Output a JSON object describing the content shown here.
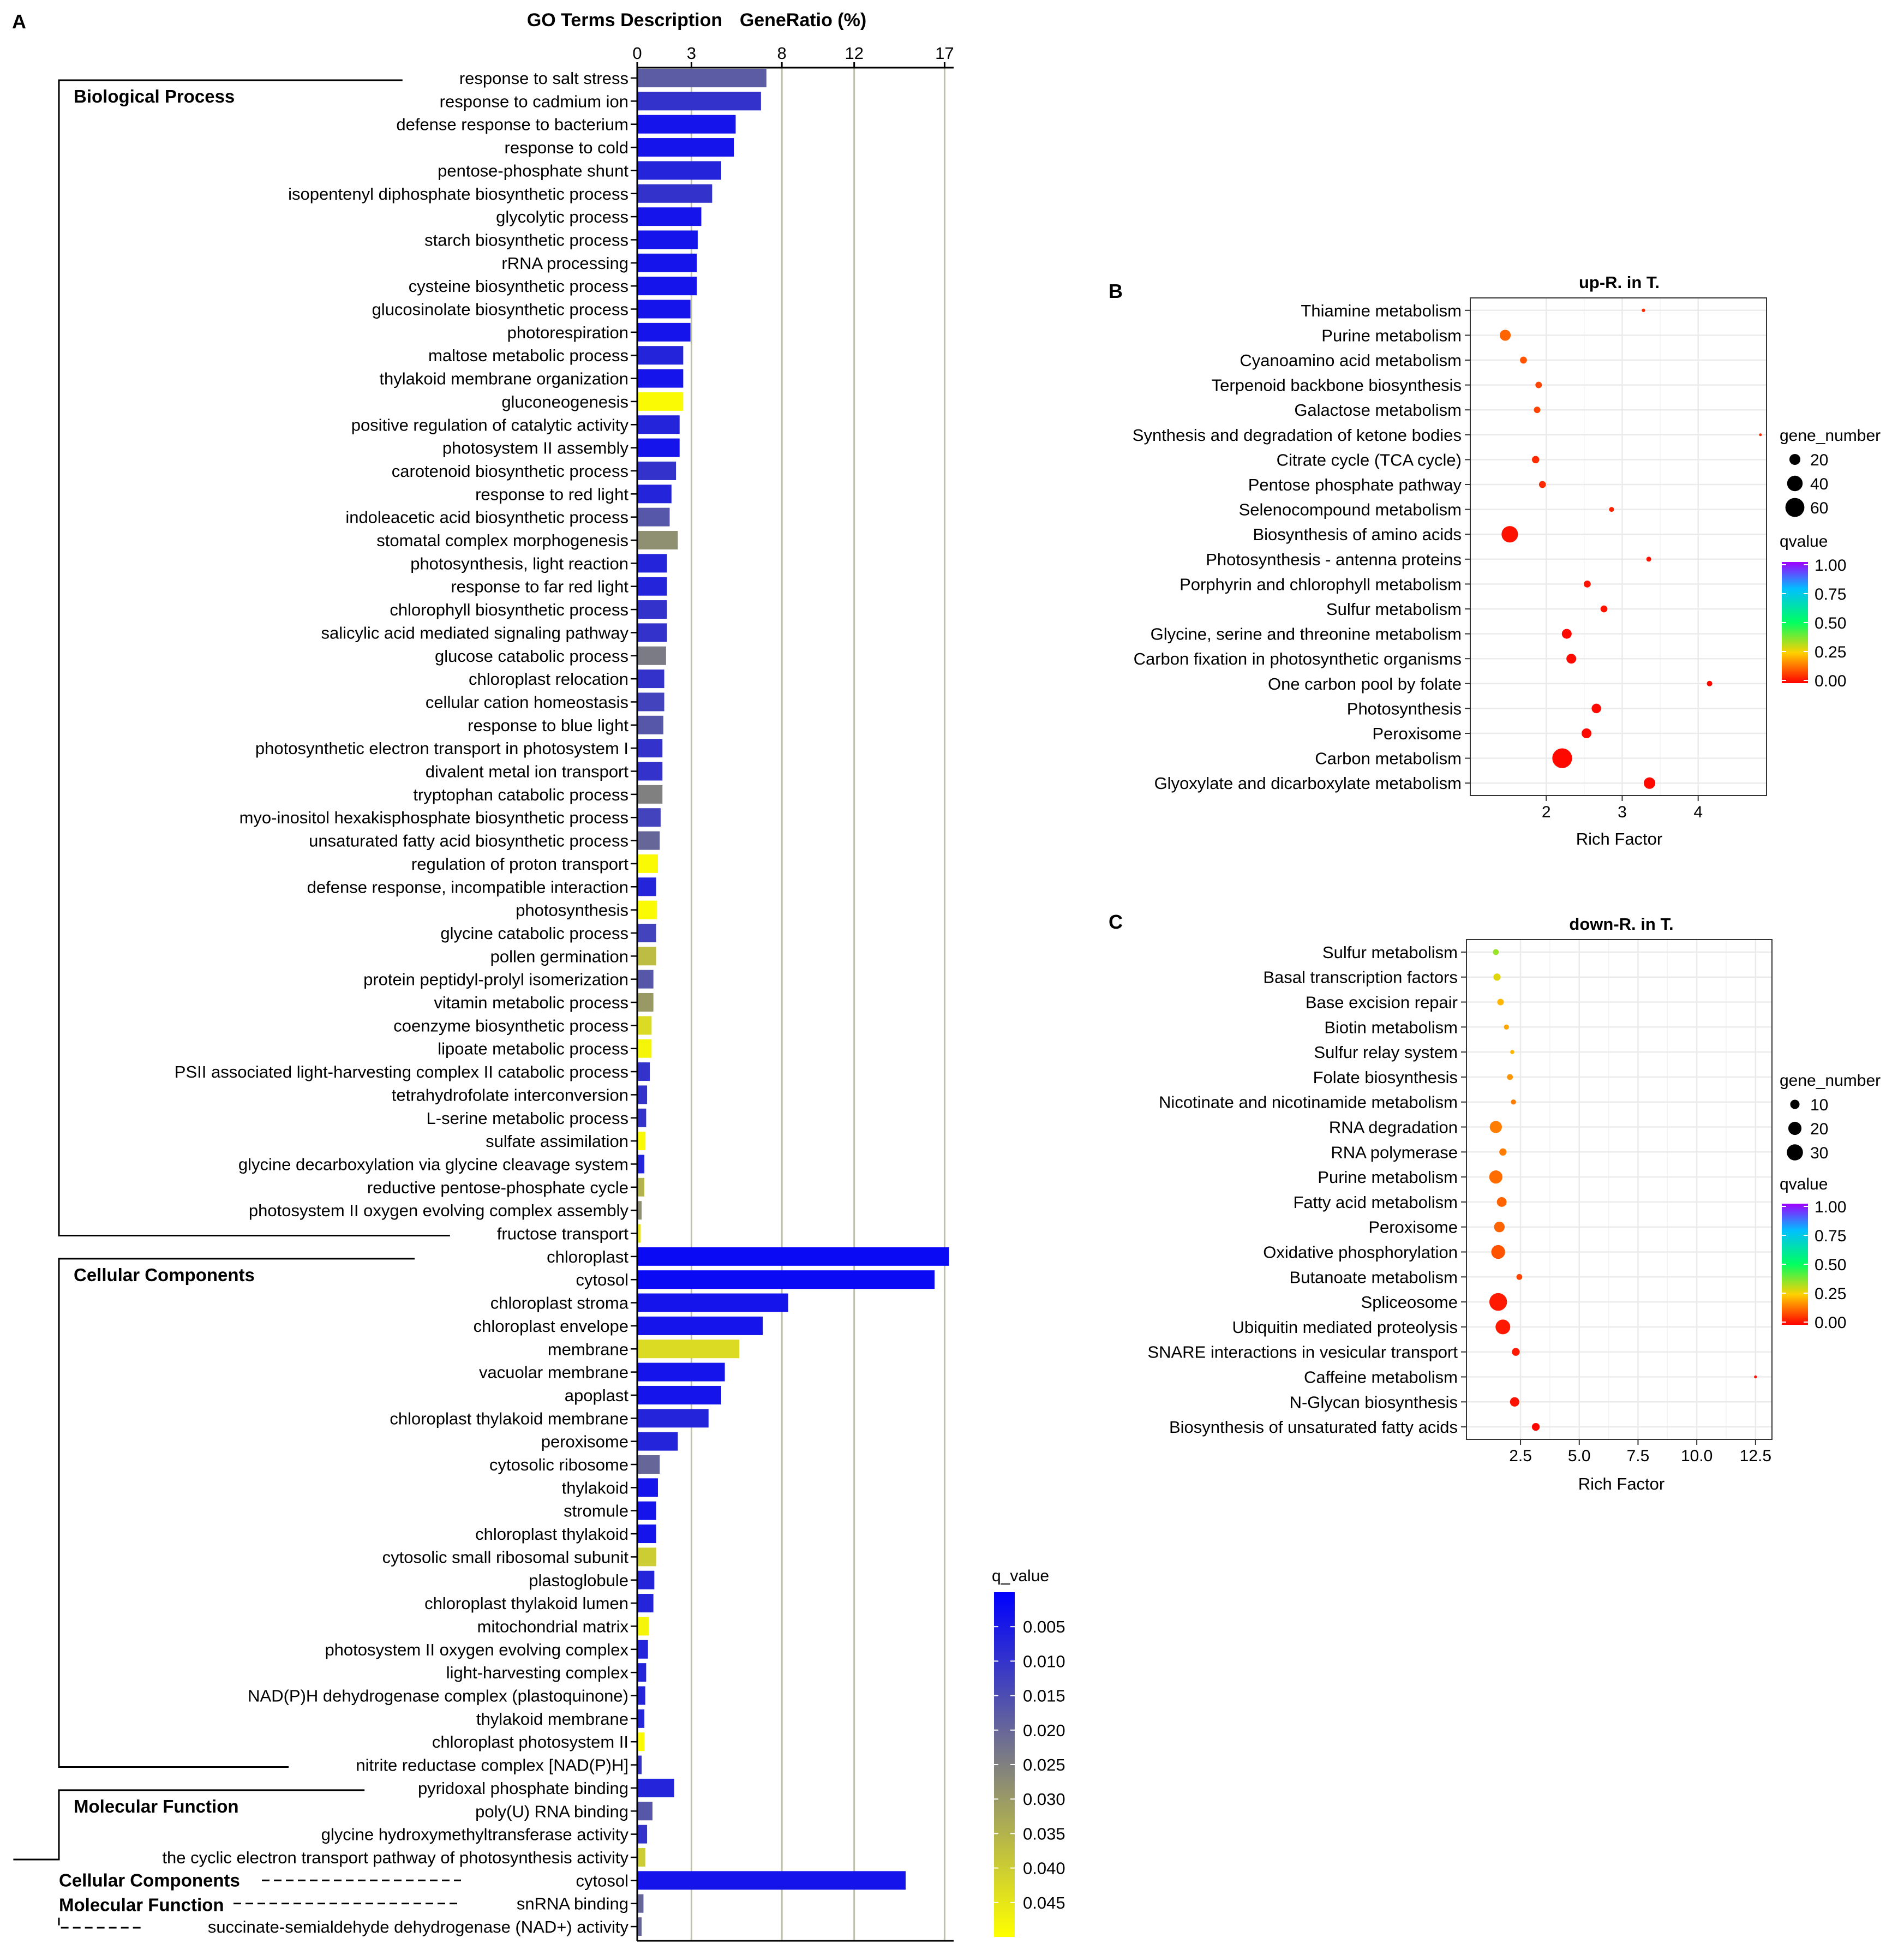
{
  "panel_letters": {
    "a": "A",
    "b": "B",
    "c": "C"
  },
  "chart_data": [
    {
      "type": "bar",
      "orientation": "horizontal",
      "header_terms": "GO Terms Description",
      "header_ratio": "GeneRatio (%)",
      "xticks": [
        "0",
        "3",
        "8",
        "12",
        "17"
      ],
      "tick_values": [
        0,
        3,
        8,
        12,
        17
      ],
      "xlim": [
        0,
        17.5
      ],
      "legend": {
        "title": "q_value",
        "ticks": [
          "0.005",
          "0.010",
          "0.015",
          "0.020",
          "0.025",
          "0.030",
          "0.035",
          "0.040",
          "0.045"
        ],
        "tick_values": [
          0.005,
          0.01,
          0.015,
          0.02,
          0.025,
          0.03,
          0.035,
          0.04,
          0.045
        ],
        "range": [
          0.0,
          0.05
        ],
        "colors": [
          "#0000ff",
          "#ffff00"
        ]
      },
      "categories": [
        {
          "name": "Biological Process",
          "style": "solid"
        },
        {
          "name": "Cellular Components",
          "style": "solid"
        },
        {
          "name": "Molecular Function",
          "style": "solid"
        },
        {
          "name": "Cellular Components",
          "style": "dashed"
        },
        {
          "name": "Molecular Function",
          "style": "dashed"
        }
      ],
      "terms": [
        {
          "label": "response to salt stress",
          "value": 7.1,
          "q": 0.018,
          "group": 0
        },
        {
          "label": "response to cadmium ion",
          "value": 6.8,
          "q": 0.01,
          "group": 0
        },
        {
          "label": "defense response to bacterium",
          "value": 5.4,
          "q": 0.004,
          "group": 0
        },
        {
          "label": "response to cold",
          "value": 5.3,
          "q": 0.004,
          "group": 0
        },
        {
          "label": "pentose-phosphate shunt",
          "value": 4.6,
          "q": 0.007,
          "group": 0
        },
        {
          "label": "isopentenyl diphosphate biosynthetic process",
          "value": 4.1,
          "q": 0.01,
          "group": 0
        },
        {
          "label": "glycolytic process",
          "value": 3.5,
          "q": 0.004,
          "group": 0
        },
        {
          "label": "starch biosynthetic process",
          "value": 3.3,
          "q": 0.004,
          "group": 0
        },
        {
          "label": "rRNA processing",
          "value": 3.25,
          "q": 0.004,
          "group": 0
        },
        {
          "label": "cysteine biosynthetic process",
          "value": 3.25,
          "q": 0.004,
          "group": 0
        },
        {
          "label": "glucosinolate biosynthetic process",
          "value": 2.9,
          "q": 0.004,
          "group": 0
        },
        {
          "label": "photorespiration",
          "value": 2.9,
          "q": 0.004,
          "group": 0
        },
        {
          "label": "maltose metabolic process",
          "value": 2.5,
          "q": 0.007,
          "group": 0
        },
        {
          "label": "thylakoid membrane organization",
          "value": 2.5,
          "q": 0.004,
          "group": 0
        },
        {
          "label": "gluconeogenesis",
          "value": 2.5,
          "q": 0.049,
          "group": 0
        },
        {
          "label": "positive regulation of catalytic activity",
          "value": 2.3,
          "q": 0.007,
          "group": 0
        },
        {
          "label": "photosystem II assembly",
          "value": 2.3,
          "q": 0.004,
          "group": 0
        },
        {
          "label": "carotenoid biosynthetic process",
          "value": 2.1,
          "q": 0.01,
          "group": 0
        },
        {
          "label": "response to red light",
          "value": 1.85,
          "q": 0.007,
          "group": 0
        },
        {
          "label": "indoleacetic acid biosynthetic process",
          "value": 1.75,
          "q": 0.017,
          "group": 0
        },
        {
          "label": "stomatal complex morphogenesis",
          "value": 2.2,
          "q": 0.028,
          "group": 0
        },
        {
          "label": "photosynthesis, light reaction",
          "value": 1.6,
          "q": 0.007,
          "group": 0
        },
        {
          "label": "response to far red light",
          "value": 1.6,
          "q": 0.007,
          "group": 0
        },
        {
          "label": "chlorophyll biosynthetic process",
          "value": 1.6,
          "q": 0.01,
          "group": 0
        },
        {
          "label": "salicylic acid mediated signaling pathway",
          "value": 1.6,
          "q": 0.01,
          "group": 0
        },
        {
          "label": "glucose catabolic process",
          "value": 1.55,
          "q": 0.024,
          "group": 0
        },
        {
          "label": "chloroplast relocation",
          "value": 1.45,
          "q": 0.01,
          "group": 0
        },
        {
          "label": "cellular cation homeostasis",
          "value": 1.45,
          "q": 0.013,
          "group": 0
        },
        {
          "label": "response to blue light",
          "value": 1.4,
          "q": 0.017,
          "group": 0
        },
        {
          "label": "photosynthetic electron transport in photosystem I",
          "value": 1.35,
          "q": 0.01,
          "group": 0
        },
        {
          "label": "divalent metal ion transport",
          "value": 1.35,
          "q": 0.01,
          "group": 0
        },
        {
          "label": "tryptophan catabolic process",
          "value": 1.35,
          "q": 0.025,
          "group": 0
        },
        {
          "label": "myo-inositol hexakisphosphate biosynthetic process",
          "value": 1.25,
          "q": 0.013,
          "group": 0
        },
        {
          "label": "unsaturated fatty acid biosynthetic process",
          "value": 1.2,
          "q": 0.02,
          "group": 0
        },
        {
          "label": "regulation of proton transport",
          "value": 1.1,
          "q": 0.049,
          "group": 0
        },
        {
          "label": "defense response, incompatible interaction",
          "value": 1.0,
          "q": 0.007,
          "group": 0
        },
        {
          "label": "photosynthesis",
          "value": 1.05,
          "q": 0.049,
          "group": 0
        },
        {
          "label": "glycine catabolic process",
          "value": 1.0,
          "q": 0.013,
          "group": 0
        },
        {
          "label": "pollen germination",
          "value": 1.0,
          "q": 0.037,
          "group": 0
        },
        {
          "label": "protein peptidyl-prolyl isomerization",
          "value": 0.85,
          "q": 0.017,
          "group": 0
        },
        {
          "label": "vitamin metabolic process",
          "value": 0.85,
          "q": 0.03,
          "group": 0
        },
        {
          "label": "coenzyme biosynthetic process",
          "value": 0.75,
          "q": 0.043,
          "group": 0
        },
        {
          "label": "lipoate metabolic process",
          "value": 0.75,
          "q": 0.048,
          "group": 0
        },
        {
          "label": "PSII associated light-harvesting complex II catabolic process",
          "value": 0.65,
          "q": 0.01,
          "group": 0
        },
        {
          "label": "tetrahydrofolate interconversion",
          "value": 0.5,
          "q": 0.01,
          "group": 0
        },
        {
          "label": "L-serine metabolic process",
          "value": 0.45,
          "q": 0.01,
          "group": 0
        },
        {
          "label": "sulfate assimilation",
          "value": 0.4,
          "q": 0.049,
          "group": 0
        },
        {
          "label": "glycine decarboxylation via glycine cleavage system",
          "value": 0.35,
          "q": 0.007,
          "group": 0
        },
        {
          "label": "reductive pentose-phosphate cycle",
          "value": 0.35,
          "q": 0.035,
          "group": 0
        },
        {
          "label": "photosystem II oxygen evolving complex assembly",
          "value": 0.2,
          "q": 0.028,
          "group": 0
        },
        {
          "label": "fructose transport",
          "value": 0.15,
          "q": 0.045,
          "group": 0
        },
        {
          "label": "chloroplast",
          "value": 17.2,
          "q": 0.002,
          "group": 1
        },
        {
          "label": "cytosol",
          "value": 16.4,
          "q": 0.002,
          "group": 1
        },
        {
          "label": "chloroplast stroma",
          "value": 8.3,
          "q": 0.004,
          "group": 1
        },
        {
          "label": "chloroplast envelope",
          "value": 6.9,
          "q": 0.004,
          "group": 1
        },
        {
          "label": "membrane",
          "value": 5.6,
          "q": 0.043,
          "group": 1
        },
        {
          "label": "vacuolar membrane",
          "value": 4.8,
          "q": 0.004,
          "group": 1
        },
        {
          "label": "apoplast",
          "value": 4.6,
          "q": 0.004,
          "group": 1
        },
        {
          "label": "chloroplast thylakoid membrane",
          "value": 3.9,
          "q": 0.007,
          "group": 1
        },
        {
          "label": "peroxisome",
          "value": 2.2,
          "q": 0.007,
          "group": 1
        },
        {
          "label": "cytosolic ribosome",
          "value": 1.2,
          "q": 0.02,
          "group": 1
        },
        {
          "label": "thylakoid",
          "value": 1.1,
          "q": 0.004,
          "group": 1
        },
        {
          "label": "stromule",
          "value": 1.0,
          "q": 0.004,
          "group": 1
        },
        {
          "label": "chloroplast thylakoid",
          "value": 1.0,
          "q": 0.004,
          "group": 1
        },
        {
          "label": "cytosolic small ribosomal subunit",
          "value": 1.0,
          "q": 0.04,
          "group": 1
        },
        {
          "label": "plastoglobule",
          "value": 0.9,
          "q": 0.007,
          "group": 1
        },
        {
          "label": "chloroplast thylakoid lumen",
          "value": 0.85,
          "q": 0.007,
          "group": 1
        },
        {
          "label": "mitochondrial matrix",
          "value": 0.6,
          "q": 0.048,
          "group": 1
        },
        {
          "label": "photosystem II oxygen evolving complex",
          "value": 0.55,
          "q": 0.007,
          "group": 1
        },
        {
          "label": "light-harvesting complex",
          "value": 0.45,
          "q": 0.007,
          "group": 1
        },
        {
          "label": "NAD(P)H dehydrogenase complex (plastoquinone)",
          "value": 0.4,
          "q": 0.007,
          "group": 1
        },
        {
          "label": "thylakoid membrane",
          "value": 0.35,
          "q": 0.007,
          "group": 1
        },
        {
          "label": "chloroplast photosystem II",
          "value": 0.35,
          "q": 0.049,
          "group": 1
        },
        {
          "label": "nitrite reductase complex [NAD(P)H]",
          "value": 0.2,
          "q": 0.01,
          "group": 1
        },
        {
          "label": "pyridoxal phosphate binding",
          "value": 2.0,
          "q": 0.007,
          "group": 2
        },
        {
          "label": "poly(U) RNA binding",
          "value": 0.8,
          "q": 0.017,
          "group": 2
        },
        {
          "label": "glycine hydroxymethyltransferase activity",
          "value": 0.5,
          "q": 0.01,
          "group": 2
        },
        {
          "label": "the cyclic electron transport pathway of photosynthesis activity",
          "value": 0.4,
          "q": 0.04,
          "group": 2
        },
        {
          "label": "cytosol",
          "value": 14.8,
          "q": 0.004,
          "group": 3
        },
        {
          "label": "snRNA binding",
          "value": 0.3,
          "q": 0.02,
          "group": 4
        },
        {
          "label": "succinate-semialdehyde dehydrogenase (NAD+) activity",
          "value": 0.2,
          "q": 0.02,
          "group": 4
        }
      ]
    },
    {
      "type": "scatter",
      "title": "up-R. in T.",
      "xlabel": "Rich Factor",
      "xlim": [
        1.0,
        4.9
      ],
      "xticks": [
        "2",
        "3",
        "4"
      ],
      "xtick_values": [
        2,
        3,
        4
      ],
      "legend": {
        "size_title": "gene_number",
        "size_labels": [
          "20",
          "40",
          "60"
        ],
        "size_values": [
          20,
          40,
          60
        ],
        "color_title": "qvalue",
        "color_labels": [
          "1.00",
          "0.75",
          "0.50",
          "0.25",
          "0.00"
        ],
        "color_values": [
          1.0,
          0.75,
          0.5,
          0.25,
          0.0
        ]
      },
      "points": [
        {
          "label": "Thiamine metabolism",
          "x": 3.28,
          "n": 2,
          "q": 0.05
        },
        {
          "label": "Purine metabolism",
          "x": 1.46,
          "n": 20,
          "q": 0.12
        },
        {
          "label": "Cyanoamino acid metabolism",
          "x": 1.7,
          "n": 8,
          "q": 0.1
        },
        {
          "label": "Terpenoid backbone biosynthesis",
          "x": 1.9,
          "n": 7,
          "q": 0.08
        },
        {
          "label": "Galactose metabolism",
          "x": 1.88,
          "n": 7,
          "q": 0.08
        },
        {
          "label": "Synthesis and degradation of ketone bodies",
          "x": 4.82,
          "n": 1,
          "q": 0.05
        },
        {
          "label": "Citrate cycle (TCA cycle)",
          "x": 1.86,
          "n": 9,
          "q": 0.05
        },
        {
          "label": "Pentose phosphate pathway",
          "x": 1.95,
          "n": 8,
          "q": 0.05
        },
        {
          "label": "Selenocompound metabolism",
          "x": 2.86,
          "n": 4,
          "q": 0.04
        },
        {
          "label": "Biosynthesis of amino acids",
          "x": 1.52,
          "n": 45,
          "q": 0.02
        },
        {
          "label": "Photosynthesis - antenna proteins",
          "x": 3.35,
          "n": 4,
          "q": 0.02
        },
        {
          "label": "Porphyrin and chlorophyll metabolism",
          "x": 2.54,
          "n": 8,
          "q": 0.02
        },
        {
          "label": "Sulfur metabolism",
          "x": 2.76,
          "n": 8,
          "q": 0.02
        },
        {
          "label": "Glycine, serine and threonine metabolism",
          "x": 2.27,
          "n": 16,
          "q": 0.01
        },
        {
          "label": "Carbon fixation in photosynthetic organisms",
          "x": 2.33,
          "n": 16,
          "q": 0.01
        },
        {
          "label": "One carbon pool by folate",
          "x": 4.15,
          "n": 5,
          "q": 0.01
        },
        {
          "label": "Photosynthesis",
          "x": 2.66,
          "n": 15,
          "q": 0.01
        },
        {
          "label": "Peroxisome",
          "x": 2.53,
          "n": 16,
          "q": 0.01
        },
        {
          "label": "Carbon metabolism",
          "x": 2.21,
          "n": 65,
          "q": 0.01
        },
        {
          "label": "Glyoxylate and dicarboxylate metabolism",
          "x": 3.36,
          "n": 22,
          "q": 0.01
        }
      ]
    },
    {
      "type": "scatter",
      "title": "down-R. in T.",
      "xlabel": "Rich Factor",
      "xlim": [
        0.2,
        13.2
      ],
      "xticks": [
        "2.5",
        "5.0",
        "7.5",
        "10.0",
        "12.5"
      ],
      "xtick_values": [
        2.5,
        5.0,
        7.5,
        10.0,
        12.5
      ],
      "legend": {
        "size_title": "gene_number",
        "size_labels": [
          "10",
          "20",
          "30"
        ],
        "size_values": [
          10,
          20,
          30
        ],
        "color_title": "qvalue",
        "color_labels": [
          "1.00",
          "0.75",
          "0.50",
          "0.25",
          "0.00"
        ],
        "color_values": [
          1.0,
          0.75,
          0.5,
          0.25,
          0.0
        ]
      },
      "points": [
        {
          "label": "Sulfur metabolism",
          "x": 1.45,
          "n": 4,
          "q": 0.35
        },
        {
          "label": "Basal transcription factors",
          "x": 1.5,
          "n": 6,
          "q": 0.28
        },
        {
          "label": "Base excision repair",
          "x": 1.65,
          "n": 5,
          "q": 0.22
        },
        {
          "label": "Biotin metabolism",
          "x": 1.9,
          "n": 3,
          "q": 0.2
        },
        {
          "label": "Sulfur relay system",
          "x": 2.15,
          "n": 2,
          "q": 0.22
        },
        {
          "label": "Folate biosynthesis",
          "x": 2.05,
          "n": 4,
          "q": 0.18
        },
        {
          "label": "Nicotinate and nicotinamide metabolism",
          "x": 2.2,
          "n": 3,
          "q": 0.15
        },
        {
          "label": "RNA degradation",
          "x": 1.45,
          "n": 17,
          "q": 0.15
        },
        {
          "label": "RNA polymerase",
          "x": 1.75,
          "n": 6,
          "q": 0.15
        },
        {
          "label": "Purine metabolism",
          "x": 1.45,
          "n": 20,
          "q": 0.13
        },
        {
          "label": "Fatty acid metabolism",
          "x": 1.7,
          "n": 11,
          "q": 0.12
        },
        {
          "label": "Peroxisome",
          "x": 1.6,
          "n": 13,
          "q": 0.12
        },
        {
          "label": "Oxidative phosphorylation",
          "x": 1.55,
          "n": 22,
          "q": 0.1
        },
        {
          "label": "Butanoate metabolism",
          "x": 2.45,
          "n": 4,
          "q": 0.08
        },
        {
          "label": "Spliceosome",
          "x": 1.55,
          "n": 36,
          "q": 0.03
        },
        {
          "label": "Ubiquitin mediated proteolysis",
          "x": 1.75,
          "n": 25,
          "q": 0.03
        },
        {
          "label": "SNARE interactions in vesicular transport",
          "x": 2.3,
          "n": 7,
          "q": 0.03
        },
        {
          "label": "Caffeine metabolism",
          "x": 12.5,
          "n": 1,
          "q": 0.02
        },
        {
          "label": "N-Glycan biosynthesis",
          "x": 2.25,
          "n": 10,
          "q": 0.02
        },
        {
          "label": "Biosynthesis of unsaturated fatty acids",
          "x": 3.15,
          "n": 7,
          "q": 0.01
        }
      ]
    }
  ]
}
